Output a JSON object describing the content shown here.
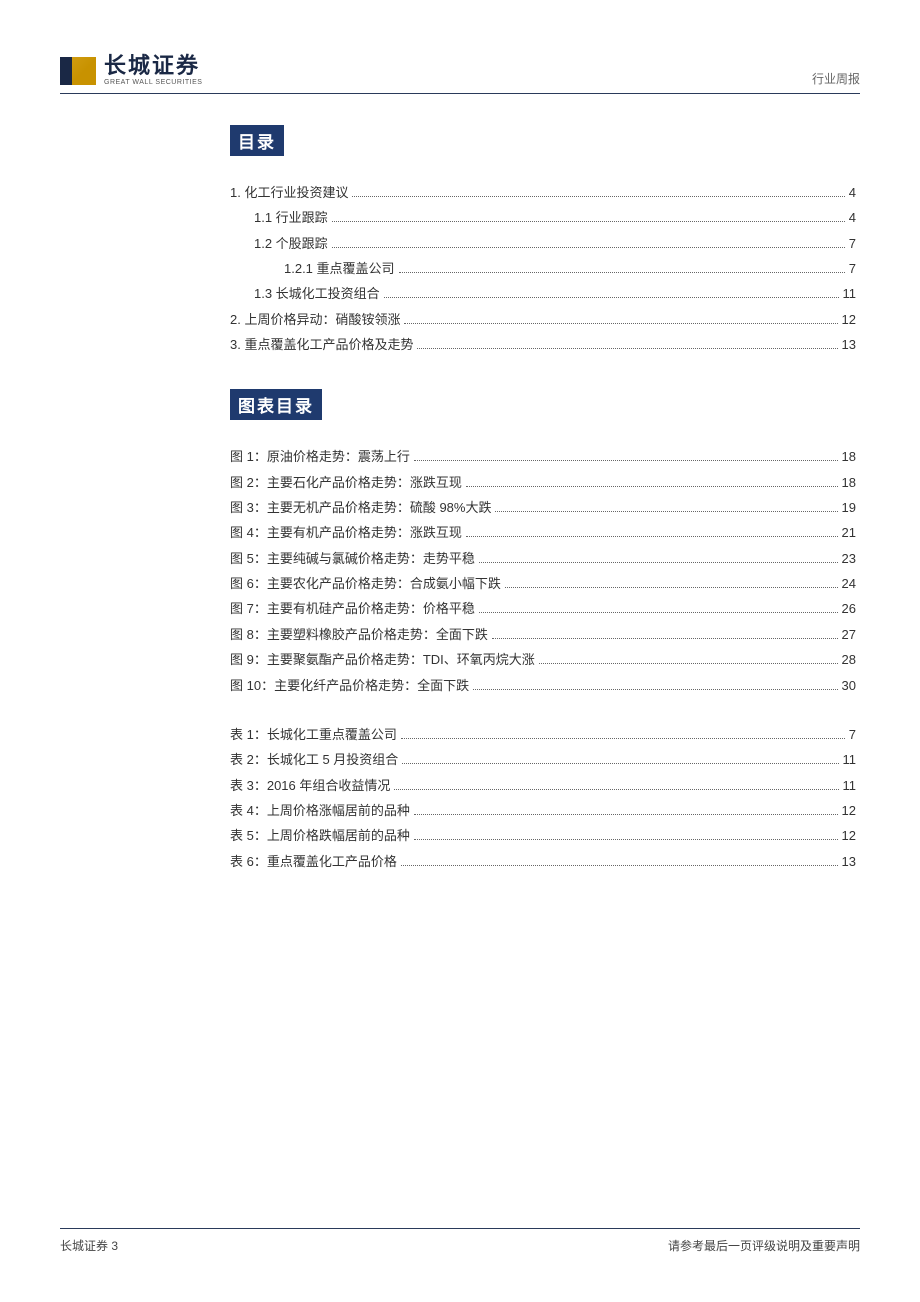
{
  "header": {
    "logo_cn": "长城证券",
    "logo_en": "GREAT WALL SECURITIES",
    "right_label": "行业周报"
  },
  "colors": {
    "brand_navy": "#1f3a6e",
    "rule": "#2a3a5a",
    "text": "#333333",
    "muted": "#666666",
    "logo_gold": "#d4a017"
  },
  "sections": {
    "toc_title": "目录",
    "figtab_title": "图表目录"
  },
  "toc": [
    {
      "label": "1.   化工行业投资建议",
      "page": "4",
      "indent": 0
    },
    {
      "label": "1.1    行业跟踪",
      "page": "4",
      "indent": 1
    },
    {
      "label": "1.2    个股跟踪",
      "page": "7",
      "indent": 1
    },
    {
      "label": "1.2.1    重点覆盖公司",
      "page": "7",
      "indent": 2
    },
    {
      "label": "1.3    长城化工投资组合",
      "page": "11",
      "indent": 3
    },
    {
      "label": "2.   上周价格异动：硝酸铵领涨",
      "page": "12",
      "indent": 0
    },
    {
      "label": "3.   重点覆盖化工产品价格及走势",
      "page": "13",
      "indent": 0
    }
  ],
  "figures": [
    {
      "label": "图 1：原油价格走势：震荡上行",
      "page": "18"
    },
    {
      "label": "图 2：主要石化产品价格走势：涨跌互现",
      "page": "18"
    },
    {
      "label": "图 3：主要无机产品价格走势：硫酸 98%大跌",
      "page": "19"
    },
    {
      "label": "图 4：主要有机产品价格走势：涨跌互现",
      "page": "21"
    },
    {
      "label": "图 5：主要纯碱与氯碱价格走势：走势平稳",
      "page": "23"
    },
    {
      "label": "图 6：主要农化产品价格走势：合成氨小幅下跌",
      "page": "24"
    },
    {
      "label": "图 7：主要有机硅产品价格走势：价格平稳",
      "page": "26"
    },
    {
      "label": "图 8：主要塑料橡胶产品价格走势：全面下跌",
      "page": "27"
    },
    {
      "label": "图 9：主要聚氨酯产品价格走势：TDI、环氧丙烷大涨",
      "page": "28"
    },
    {
      "label": "图 10：主要化纤产品价格走势：全面下跌",
      "page": "30"
    }
  ],
  "tables": [
    {
      "label": "表 1：长城化工重点覆盖公司",
      "page": "7"
    },
    {
      "label": "表 2：长城化工 5 月投资组合",
      "page": "11"
    },
    {
      "label": "表 3：2016 年组合收益情况",
      "page": "11"
    },
    {
      "label": "表 4：上周价格涨幅居前的品种",
      "page": "12"
    },
    {
      "label": "表 5：上周价格跌幅居前的品种",
      "page": "12"
    },
    {
      "label": "表 6：重点覆盖化工产品价格",
      "page": "13"
    }
  ],
  "footer": {
    "left": "长城证券 3",
    "right": "请参考最后一页评级说明及重要声明"
  }
}
